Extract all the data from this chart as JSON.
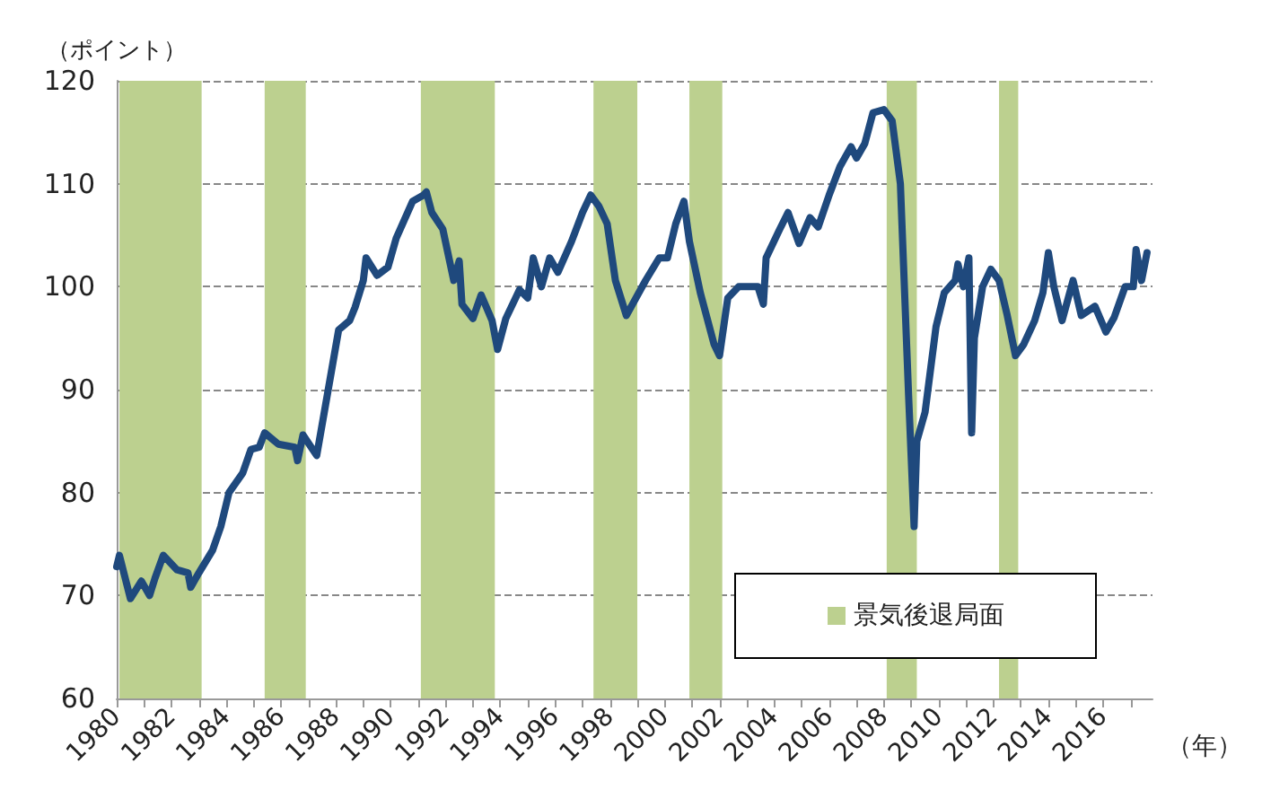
{
  "chart_data": {
    "type": "line",
    "xlabel": "（年）",
    "ylabel": "（ポイント）",
    "xlim": [
      1980,
      2017.8
    ],
    "xticks": [
      1980,
      {
        "value": 1981,
        "label": null
      },
      1982,
      {
        "value": 1983,
        "label": null
      },
      1984,
      {
        "value": 1985,
        "label": null
      },
      1986,
      {
        "value": 1987,
        "label": null
      },
      1988,
      {
        "value": 1989,
        "label": null
      },
      1990,
      {
        "value": 1991,
        "label": null
      },
      1992,
      {
        "value": 1993,
        "label": null
      },
      1994,
      {
        "value": 1995,
        "label": null
      },
      1996,
      {
        "value": 1997,
        "label": null
      },
      1998,
      {
        "value": 1999,
        "label": null
      },
      2000,
      {
        "value": 2001,
        "label": null
      },
      2002,
      {
        "value": 2003,
        "label": null
      },
      2004,
      {
        "value": 2005,
        "label": null
      },
      2006,
      {
        "value": 2007,
        "label": null
      },
      2008,
      {
        "value": 2009,
        "label": null
      },
      2010,
      {
        "value": 2011,
        "label": null
      },
      2012,
      {
        "value": 2013,
        "label": null
      },
      2014,
      {
        "value": 2015,
        "label": null
      },
      2016,
      {
        "value": 2017,
        "label": null
      }
    ],
    "ylim": [
      60,
      120
    ],
    "yticks": [
      60,
      70,
      80,
      90,
      100,
      110,
      120
    ],
    "annotations": [
      "景気後退局面"
    ],
    "grid": "y",
    "marker": "none",
    "line_style": "solid",
    "series": [
      {
        "color": "#1f497d",
        "x": [
          1980.0,
          1980.1,
          1980.5,
          1980.9,
          1981.2,
          1981.4,
          1981.7,
          1982.2,
          1982.6,
          1982.7,
          1983.0,
          1983.5,
          1983.8,
          1984.1,
          1984.6,
          1984.9,
          1985.2,
          1985.4,
          1985.9,
          1986.5,
          1986.6,
          1986.8,
          1987.1,
          1987.3,
          1987.7,
          1988.1,
          1988.5,
          1988.7,
          1989.0,
          1989.1,
          1989.5,
          1989.9,
          1990.2,
          1990.8,
          1991.2,
          1991.3,
          1991.5,
          1991.9,
          1992.3,
          1992.5,
          1992.6,
          1993.0,
          1993.3,
          1993.7,
          1993.9,
          1994.2,
          1994.7,
          1995.0,
          1995.2,
          1995.5,
          1995.8,
          1996.1,
          1996.6,
          1997.0,
          1997.3,
          1997.6,
          1997.9,
          1998.2,
          1998.6,
          1999.3,
          1999.8,
          2000.1,
          2000.4,
          2000.7,
          2000.9,
          2001.3,
          2001.8,
          2002.0,
          2002.3,
          2002.7,
          2003.4,
          2003.6,
          2003.7,
          2004.2,
          2004.5,
          2004.9,
          2005.3,
          2005.6,
          2006.0,
          2006.4,
          2006.8,
          2007.0,
          2007.3,
          2007.6,
          2008.0,
          2008.3,
          2008.6,
          2008.9,
          2009.1,
          2009.2,
          2009.5,
          2009.9,
          2010.2,
          2010.6,
          2010.7,
          2010.9,
          2011.1,
          2011.2,
          2011.3,
          2011.6,
          2011.9,
          2012.2,
          2012.5,
          2012.8,
          2013.1,
          2013.5,
          2013.8,
          2014.0,
          2014.2,
          2014.5,
          2014.9,
          2015.2,
          2015.7,
          2016.1,
          2016.4,
          2016.8,
          2017.1,
          2017.2,
          2017.4,
          2017.6
        ],
        "values": [
          72.8,
          73.9,
          69.7,
          71.4,
          70,
          71.7,
          73.9,
          72.5,
          72.2,
          70.8,
          72.2,
          74.4,
          76.7,
          80,
          81.9,
          84.2,
          84.4,
          85.8,
          84.7,
          84.4,
          83.1,
          85.6,
          84.4,
          83.6,
          89.7,
          95.8,
          96.7,
          98,
          100.6,
          102.8,
          101.1,
          101.9,
          104.7,
          108.3,
          108.9,
          109.2,
          107.2,
          105.6,
          100.6,
          102.5,
          98.3,
          96.9,
          99.2,
          96.7,
          93.9,
          96.9,
          99.7,
          98.9,
          102.8,
          100,
          102.8,
          101.4,
          104.4,
          107.2,
          108.9,
          107.8,
          106.1,
          100.6,
          97.2,
          100.6,
          102.8,
          102.8,
          106.1,
          108.3,
          104.4,
          99.4,
          94.4,
          93.3,
          98.9,
          100,
          100,
          98.3,
          102.8,
          105.6,
          107.2,
          104.2,
          106.7,
          105.8,
          108.9,
          111.7,
          113.6,
          112.5,
          113.9,
          116.9,
          117.2,
          116.1,
          110,
          89.4,
          76.7,
          85,
          87.8,
          96.1,
          99.4,
          100.6,
          102.2,
          100,
          102.8,
          85.8,
          95,
          100,
          101.7,
          100.6,
          97.2,
          93.3,
          94.4,
          96.7,
          99.4,
          103.3,
          100,
          96.7,
          100.6,
          97.2,
          98.1,
          95.6,
          97,
          100,
          100,
          103.6,
          100.6,
          103.3
        ]
      }
    ],
    "bands": [
      {
        "axis": "x",
        "from": 1980.1,
        "to": 1983.1,
        "color": "#bcd08f"
      },
      {
        "axis": "x",
        "from": 1985.4,
        "to": 1986.9,
        "color": "#bcd08f"
      },
      {
        "axis": "x",
        "from": 1991.1,
        "to": 1993.8,
        "color": "#bcd08f"
      },
      {
        "axis": "x",
        "from": 1997.4,
        "to": 1999.0,
        "color": "#bcd08f"
      },
      {
        "axis": "x",
        "from": 2000.9,
        "to": 2002.1,
        "color": "#bcd08f"
      },
      {
        "axis": "x",
        "from": 2008.1,
        "to": 2009.2,
        "color": "#bcd08f"
      },
      {
        "axis": "x",
        "from": 2012.2,
        "to": 2012.9,
        "color": "#bcd08f"
      }
    ]
  }
}
